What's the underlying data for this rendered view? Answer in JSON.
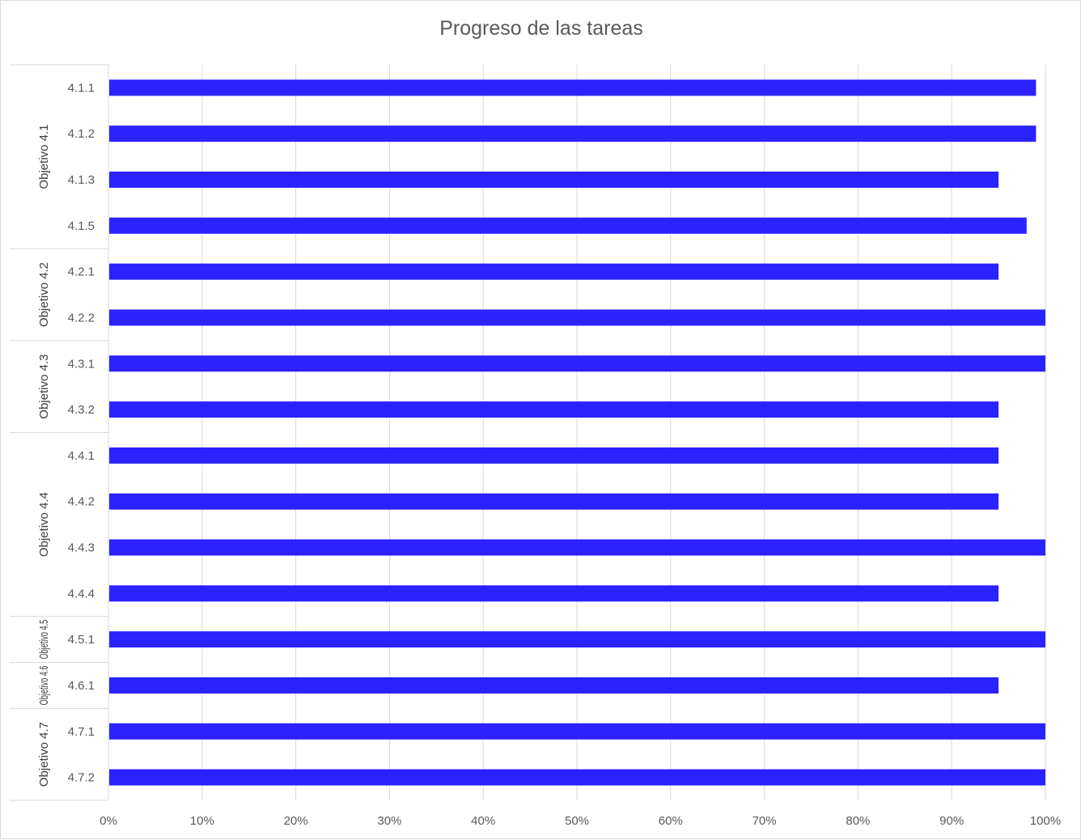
{
  "chart_data": {
    "type": "bar",
    "orientation": "horizontal",
    "title": "Progreso de las tareas",
    "xlabel": "",
    "ylabel": "",
    "xlim": [
      0,
      1
    ],
    "x_ticks": [
      "0%",
      "10%",
      "20%",
      "30%",
      "40%",
      "50%",
      "60%",
      "70%",
      "80%",
      "90%",
      "100%"
    ],
    "grid": true,
    "legend": "none",
    "bar_color": "#2a22ff",
    "groups": [
      {
        "label": "Objetivo 4.1",
        "categories": [
          "4.1.1",
          "4.1.2",
          "4.1.3",
          "4.1.5"
        ]
      },
      {
        "label": "Objetivo 4.2",
        "categories": [
          "4.2.1",
          "4.2.2"
        ]
      },
      {
        "label": "Objetivo 4.3",
        "categories": [
          "4.3.1",
          "4.3.2"
        ]
      },
      {
        "label": "Objetivo 4.4",
        "categories": [
          "4.4.1",
          "4.4.2",
          "4.4.3",
          "4.4.4"
        ]
      },
      {
        "label": "Objetivo 4.5",
        "categories": [
          "4.5.1"
        ]
      },
      {
        "label": "Objetivo 4.6",
        "categories": [
          "4.6.1"
        ]
      },
      {
        "label": "Objetivo 4.7",
        "categories": [
          "4.7.1",
          "4.7.2"
        ]
      }
    ],
    "categories": [
      "4.1.1",
      "4.1.2",
      "4.1.3",
      "4.1.5",
      "4.2.1",
      "4.2.2",
      "4.3.1",
      "4.3.2",
      "4.4.1",
      "4.4.2",
      "4.4.3",
      "4.4.4",
      "4.5.1",
      "4.6.1",
      "4.7.1",
      "4.7.2"
    ],
    "values": [
      0.99,
      0.99,
      0.95,
      0.98,
      0.95,
      1.0,
      1.0,
      0.95,
      0.95,
      0.95,
      1.0,
      0.95,
      1.0,
      0.95,
      1.0,
      1.0
    ]
  }
}
